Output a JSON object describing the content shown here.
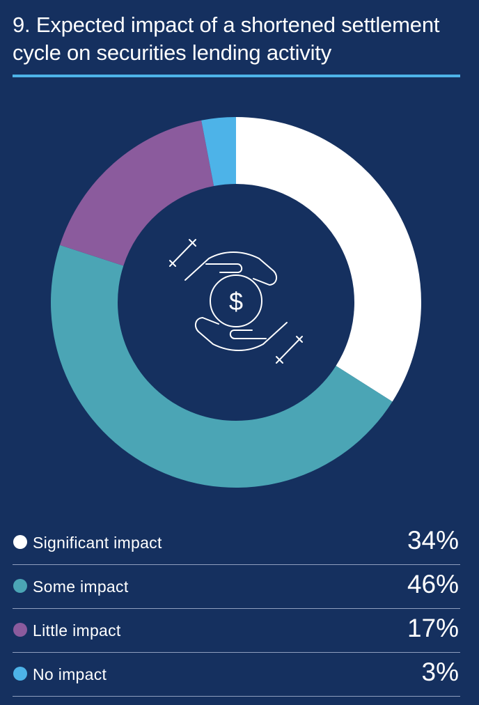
{
  "title": "9. Expected impact of a shortened settlement cycle on securities lending activity",
  "accent_color": "#4db3e8",
  "background_color": "#15305f",
  "center_icon": "hands-holding-dollar-coin-icon",
  "chart_data": {
    "type": "pie",
    "style": "donut",
    "categories": [
      "Significant impact",
      "Some impact",
      "Little impact",
      "No impact"
    ],
    "values": [
      34,
      46,
      17,
      3
    ],
    "value_labels": [
      "34%",
      "46%",
      "17%",
      "3%"
    ],
    "colors": [
      "#ffffff",
      "#4ba5b5",
      "#8b5b9d",
      "#4db3e8"
    ],
    "legend_position": "bottom"
  }
}
